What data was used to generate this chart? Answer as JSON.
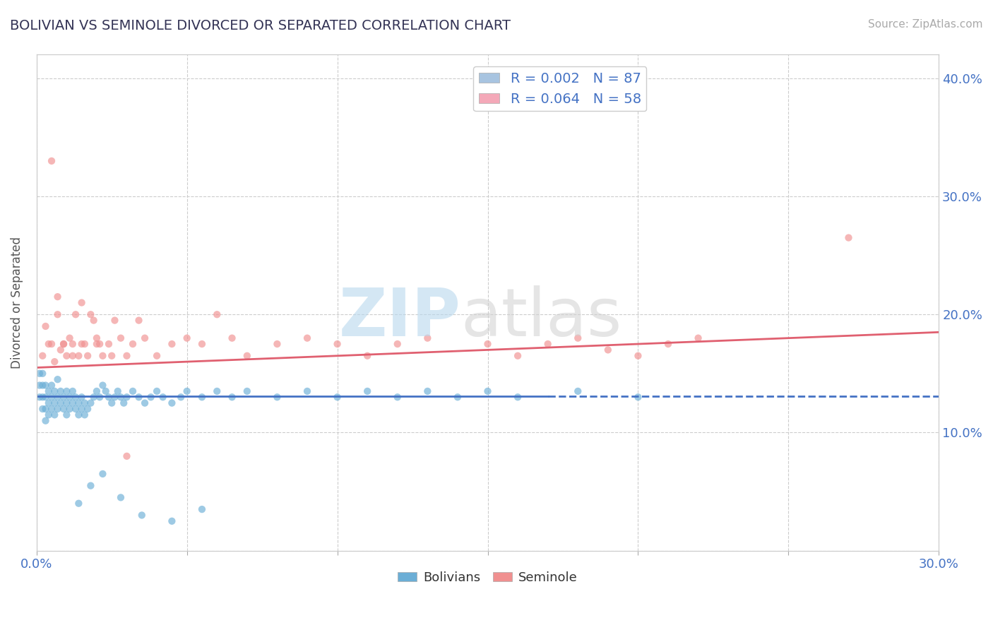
{
  "title": "BOLIVIAN VS SEMINOLE DIVORCED OR SEPARATED CORRELATION CHART",
  "source": "Source: ZipAtlas.com",
  "ylabel": "Divorced or Separated",
  "xlim": [
    0.0,
    0.3
  ],
  "ylim": [
    0.0,
    0.42
  ],
  "xtick_positions": [
    0.0,
    0.05,
    0.1,
    0.15,
    0.2,
    0.25,
    0.3
  ],
  "xticklabels": [
    "0.0%",
    "",
    "",
    "",
    "",
    "",
    "30.0%"
  ],
  "ytick_positions": [
    0.0,
    0.1,
    0.2,
    0.3,
    0.4
  ],
  "yticklabels_right": [
    "",
    "10.0%",
    "20.0%",
    "30.0%",
    "40.0%"
  ],
  "legend1_label1": "R = 0.002   N = 87",
  "legend1_label2": "R = 0.064   N = 58",
  "legend1_color1": "#a8c4e0",
  "legend1_color2": "#f4a8b8",
  "bolivians_color": "#6baed6",
  "seminole_color": "#f09090",
  "trend_bolivians_color": "#4472c4",
  "trend_seminole_color": "#e06070",
  "bolivians_label": "Bolivians",
  "seminole_label": "Seminole",
  "bolivians_trend_y0": 0.131,
  "bolivians_trend_y1": 0.131,
  "seminole_trend_y0": 0.155,
  "seminole_trend_y1": 0.185,
  "bolivians_x": [
    0.001,
    0.001,
    0.001,
    0.002,
    0.002,
    0.002,
    0.002,
    0.003,
    0.003,
    0.003,
    0.003,
    0.004,
    0.004,
    0.004,
    0.005,
    0.005,
    0.005,
    0.006,
    0.006,
    0.006,
    0.007,
    0.007,
    0.007,
    0.008,
    0.008,
    0.009,
    0.009,
    0.01,
    0.01,
    0.01,
    0.011,
    0.011,
    0.012,
    0.012,
    0.013,
    0.013,
    0.014,
    0.014,
    0.015,
    0.015,
    0.016,
    0.016,
    0.017,
    0.018,
    0.019,
    0.02,
    0.021,
    0.022,
    0.023,
    0.024,
    0.025,
    0.026,
    0.027,
    0.028,
    0.029,
    0.03,
    0.032,
    0.034,
    0.036,
    0.038,
    0.04,
    0.042,
    0.045,
    0.048,
    0.05,
    0.055,
    0.06,
    0.065,
    0.07,
    0.08,
    0.09,
    0.1,
    0.11,
    0.12,
    0.13,
    0.14,
    0.15,
    0.16,
    0.18,
    0.2,
    0.014,
    0.018,
    0.022,
    0.028,
    0.035,
    0.045,
    0.055
  ],
  "bolivians_y": [
    0.13,
    0.14,
    0.15,
    0.12,
    0.13,
    0.14,
    0.15,
    0.11,
    0.12,
    0.13,
    0.14,
    0.115,
    0.125,
    0.135,
    0.12,
    0.13,
    0.14,
    0.115,
    0.125,
    0.135,
    0.12,
    0.13,
    0.145,
    0.125,
    0.135,
    0.12,
    0.13,
    0.115,
    0.125,
    0.135,
    0.12,
    0.13,
    0.125,
    0.135,
    0.12,
    0.13,
    0.115,
    0.125,
    0.12,
    0.13,
    0.115,
    0.125,
    0.12,
    0.125,
    0.13,
    0.135,
    0.13,
    0.14,
    0.135,
    0.13,
    0.125,
    0.13,
    0.135,
    0.13,
    0.125,
    0.13,
    0.135,
    0.13,
    0.125,
    0.13,
    0.135,
    0.13,
    0.125,
    0.13,
    0.135,
    0.13,
    0.135,
    0.13,
    0.135,
    0.13,
    0.135,
    0.13,
    0.135,
    0.13,
    0.135,
    0.13,
    0.135,
    0.13,
    0.135,
    0.13,
    0.04,
    0.055,
    0.065,
    0.045,
    0.03,
    0.025,
    0.035
  ],
  "seminole_x": [
    0.002,
    0.004,
    0.005,
    0.006,
    0.007,
    0.008,
    0.009,
    0.01,
    0.011,
    0.012,
    0.013,
    0.014,
    0.015,
    0.016,
    0.017,
    0.018,
    0.019,
    0.02,
    0.021,
    0.022,
    0.024,
    0.026,
    0.028,
    0.03,
    0.032,
    0.034,
    0.036,
    0.04,
    0.045,
    0.05,
    0.055,
    0.06,
    0.065,
    0.07,
    0.08,
    0.09,
    0.1,
    0.11,
    0.12,
    0.13,
    0.15,
    0.16,
    0.17,
    0.18,
    0.19,
    0.2,
    0.21,
    0.22,
    0.27,
    0.003,
    0.005,
    0.007,
    0.009,
    0.012,
    0.015,
    0.02,
    0.025,
    0.03
  ],
  "seminole_y": [
    0.165,
    0.175,
    0.33,
    0.16,
    0.2,
    0.17,
    0.175,
    0.165,
    0.18,
    0.175,
    0.2,
    0.165,
    0.21,
    0.175,
    0.165,
    0.2,
    0.195,
    0.18,
    0.175,
    0.165,
    0.175,
    0.195,
    0.18,
    0.165,
    0.175,
    0.195,
    0.18,
    0.165,
    0.175,
    0.18,
    0.175,
    0.2,
    0.18,
    0.165,
    0.175,
    0.18,
    0.175,
    0.165,
    0.175,
    0.18,
    0.175,
    0.165,
    0.175,
    0.18,
    0.17,
    0.165,
    0.175,
    0.18,
    0.265,
    0.19,
    0.175,
    0.215,
    0.175,
    0.165,
    0.175,
    0.175,
    0.165,
    0.08
  ]
}
